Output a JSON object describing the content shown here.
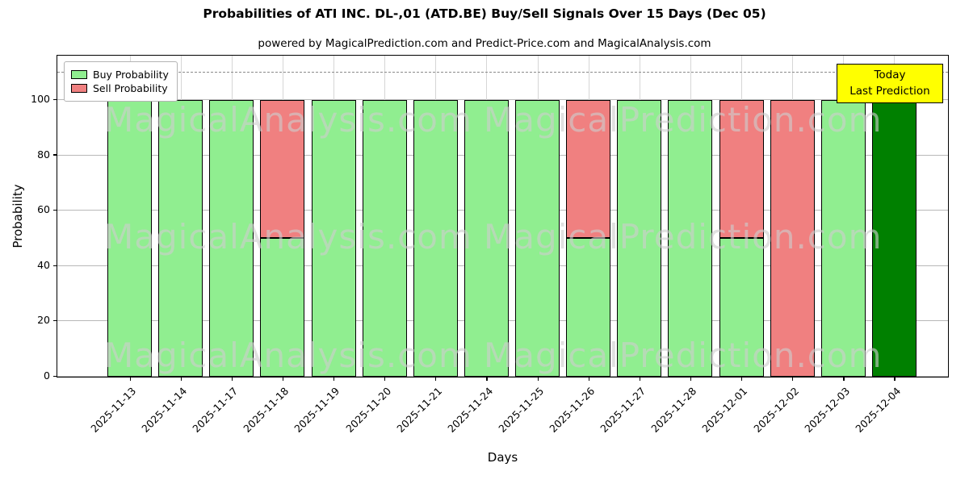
{
  "title": "Probabilities of ATI INC.  DL-,01 (ATD.BE) Buy/Sell Signals Over 15 Days (Dec 05)",
  "subtitle": "powered by MagicalPrediction.com and Predict-Price.com and MagicalAnalysis.com",
  "annotation": {
    "line1": "Today",
    "line2": "Last Prediction",
    "bg_color": "#ffff00"
  },
  "watermarks": {
    "left": "MagicalAnalysis.com",
    "right": "MagicalPrediction.com"
  },
  "legend": {
    "items": [
      {
        "label": "Buy Probability",
        "color": "#90EE90"
      },
      {
        "label": "Sell Probability",
        "color": "#F08080"
      }
    ]
  },
  "chart_data": {
    "type": "bar",
    "stacked": true,
    "title": "Probabilities of ATI INC.  DL-,01 (ATD.BE) Buy/Sell Signals Over 15 Days (Dec 05)",
    "xlabel": "Days",
    "ylabel": "Probability",
    "ylim": [
      0,
      116
    ],
    "yticks": [
      0,
      20,
      40,
      60,
      80,
      100
    ],
    "dashed_line_y": 110,
    "grid": true,
    "legend_position": "upper left",
    "categories": [
      "2025-11-13",
      "2025-11-14",
      "2025-11-17",
      "2025-11-18",
      "2025-11-19",
      "2025-11-20",
      "2025-11-21",
      "2025-11-24",
      "2025-11-25",
      "2025-11-26",
      "2025-11-27",
      "2025-11-28",
      "2025-12-01",
      "2025-12-02",
      "2025-12-03",
      "2025-12-04"
    ],
    "series": [
      {
        "name": "Buy Probability",
        "color": "#90EE90",
        "values": [
          100,
          100,
          100,
          50,
          100,
          100,
          100,
          100,
          100,
          50,
          100,
          100,
          50,
          0,
          100,
          100
        ]
      },
      {
        "name": "Sell Probability",
        "color": "#F08080",
        "values": [
          0,
          0,
          0,
          50,
          0,
          0,
          0,
          0,
          0,
          50,
          0,
          0,
          50,
          100,
          0,
          0
        ]
      }
    ],
    "highlight_last_bar": {
      "index": 15,
      "color": "#008000",
      "meaning": "Today / Last Prediction"
    }
  }
}
